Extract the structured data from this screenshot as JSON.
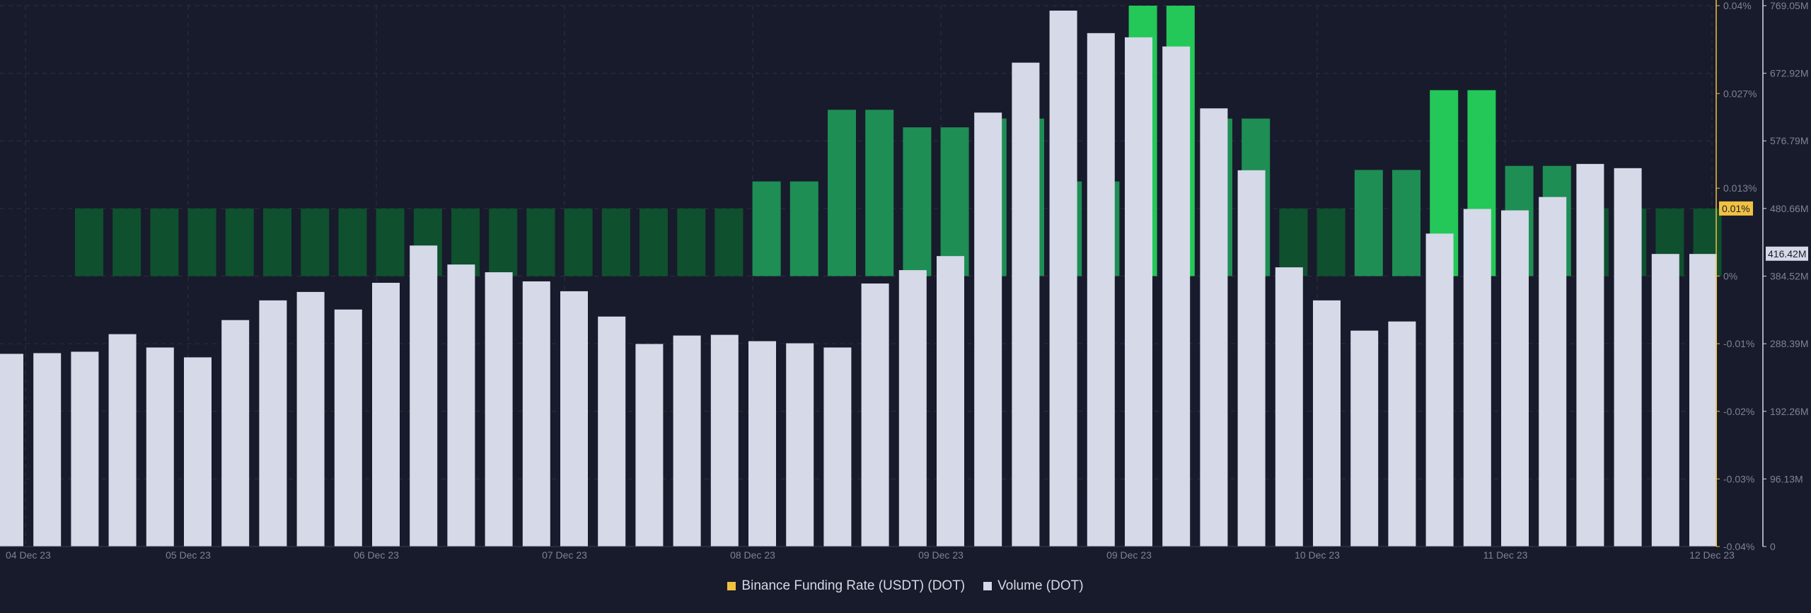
{
  "colors": {
    "background": "#181b2b",
    "funding_low": "#0f502e",
    "funding_mid": "#1e8e55",
    "funding_high": "#23c858",
    "volume": "#d5d9e8",
    "funding_axis": "#f1c142",
    "volume_axis": "#d5d9e8",
    "grid": "#2c3046"
  },
  "legend": [
    {
      "label": "Binance Funding Rate (USDT) (DOT)",
      "color": "#f1c142"
    },
    {
      "label": "Volume (DOT)",
      "color": "#d5d9e8"
    }
  ],
  "badges": {
    "funding_current": "0.01%",
    "volume_current": "416.42M"
  },
  "chart_data": {
    "type": "bar",
    "title": "",
    "x_tick_labels": [
      "04 Dec 23",
      "05 Dec 23",
      "06 Dec 23",
      "07 Dec 23",
      "08 Dec 23",
      "09 Dec 23",
      "09 Dec 23",
      "10 Dec 23",
      "11 Dec 23",
      "12 Dec 23"
    ],
    "funding_axis": {
      "ticks": [
        "0.04%",
        "0.027%",
        "0.013%",
        "0%",
        "-0.01%",
        "-0.02%",
        "-0.03%",
        "-0.04%"
      ],
      "tick_values": [
        0.04,
        0.027,
        0.013,
        0,
        -0.01,
        -0.02,
        -0.03,
        -0.04
      ],
      "ylim": [
        -0.04,
        0.04
      ],
      "current_value": 0.01
    },
    "volume_axis": {
      "ticks": [
        "769.05M",
        "672.92M",
        "576.79M",
        "480.66M",
        "384.52M",
        "288.39M",
        "192.26M",
        "96.13M",
        "0"
      ],
      "tick_values": [
        769.05,
        672.92,
        576.79,
        480.66,
        384.52,
        288.39,
        192.26,
        96.13,
        0
      ],
      "ylim": [
        0,
        769.05
      ],
      "current_value": 416.42
    },
    "series": [
      {
        "name": "Binance Funding Rate (USDT) (DOT)",
        "unit": "%",
        "values": [
          0.01,
          0.01,
          0.01,
          0.01,
          0.01,
          0.01,
          0.01,
          0.01,
          0.01,
          0.01,
          0.01,
          0.01,
          0.01,
          0.01,
          0.01,
          0.01,
          0.01,
          0.01,
          0.014,
          0.014,
          0.0246,
          0.0246,
          0.022,
          0.022,
          0.0233,
          0.0233,
          0.014,
          0.014,
          0.04,
          0.04,
          0.0233,
          0.0233,
          0.01,
          0.01,
          0.0157,
          0.0157,
          0.0275,
          0.0275,
          0.0163,
          0.0163,
          0.01,
          0.01,
          0.01,
          0.01
        ]
      },
      {
        "name": "Volume (DOT)",
        "unit": "M",
        "values": [
          274,
          275,
          277,
          302,
          283,
          269,
          322,
          350,
          362,
          337,
          375,
          428,
          401,
          390,
          377,
          363,
          327,
          288,
          300,
          301,
          292,
          289,
          283,
          374,
          393,
          413,
          617,
          688,
          762,
          730,
          724,
          711,
          623,
          535,
          397,
          350,
          307,
          320,
          445,
          480,
          478,
          497,
          544,
          538,
          416,
          416
        ]
      }
    ],
    "grid": true,
    "legend_position": "bottom-center"
  }
}
